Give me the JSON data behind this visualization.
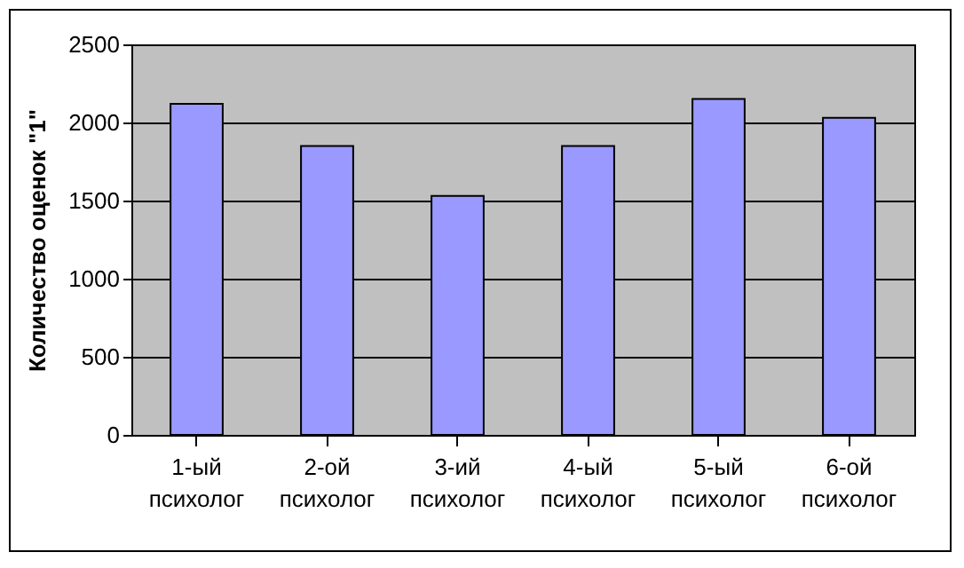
{
  "chart_data": {
    "type": "bar",
    "ylabel": "Количество оценок \"1\"",
    "categories": [
      "1-ый психолог",
      "2-ой психолог",
      "3-ий психолог",
      "4-ый психолог",
      "5-ый психолог",
      "6-ой психолог"
    ],
    "values": [
      2120,
      1850,
      1530,
      1850,
      2150,
      2030
    ],
    "color": "#9999ff",
    "ylim": [
      0,
      2500
    ],
    "yticks": [
      0,
      500,
      1000,
      1500,
      2000,
      2500
    ],
    "grid": "y"
  }
}
